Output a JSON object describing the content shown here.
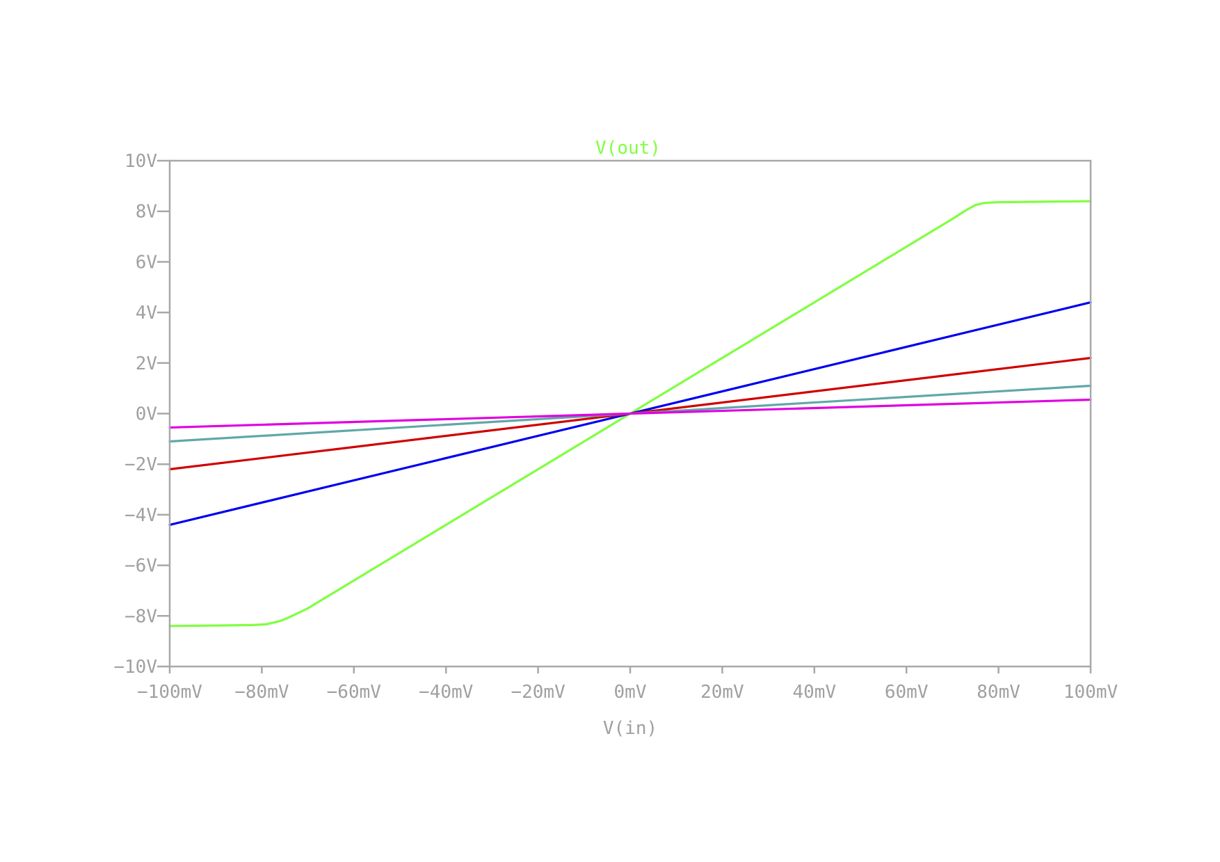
{
  "chart_data": {
    "type": "line",
    "title": "V(out)",
    "xlabel": "V(in)",
    "ylabel": "",
    "xlim": [
      -100,
      100
    ],
    "ylim": [
      -10,
      10
    ],
    "x_unit": "mV",
    "y_unit": "V",
    "grid": false,
    "xticks": [
      -100,
      -80,
      -60,
      -40,
      -20,
      0,
      20,
      40,
      60,
      80,
      100
    ],
    "xtick_labels": [
      "-100mV",
      "-80mV",
      "-60mV",
      "-40mV",
      "-20mV",
      "0mV",
      "20mV",
      "40mV",
      "60mV",
      "80mV",
      "100mV"
    ],
    "yticks": [
      10,
      8,
      6,
      4,
      2,
      0,
      -2,
      -4,
      -6,
      -8,
      -10
    ],
    "ytick_labels": [
      "10V",
      "8V",
      "6V",
      "4V",
      "2V",
      "0V",
      "-2V",
      "-4V",
      "-6V",
      "-8V",
      "-10V"
    ],
    "series": [
      {
        "color": "#80ff40",
        "x": [
          -100,
          -90,
          -82,
          -79,
          -76,
          -74,
          -70,
          -60,
          -40,
          -20,
          0,
          20,
          40,
          60,
          70,
          73,
          75,
          77,
          80,
          90,
          100
        ],
        "y": [
          -8.4,
          -8.38,
          -8.36,
          -8.33,
          -8.2,
          -8.05,
          -7.7,
          -6.6,
          -4.4,
          -2.2,
          0,
          2.2,
          4.4,
          6.6,
          7.7,
          8.05,
          8.25,
          8.33,
          8.36,
          8.38,
          8.4
        ]
      },
      {
        "color": "#0000f0",
        "x": [
          -100,
          100
        ],
        "y": [
          -4.4,
          4.4
        ]
      },
      {
        "color": "#d00000",
        "x": [
          -100,
          100
        ],
        "y": [
          -2.2,
          2.2
        ]
      },
      {
        "color": "#60a8a8",
        "x": [
          -100,
          100
        ],
        "y": [
          -1.1,
          1.1
        ]
      },
      {
        "color": "#e000e0",
        "x": [
          -100,
          100
        ],
        "y": [
          -0.55,
          0.55
        ]
      }
    ]
  }
}
